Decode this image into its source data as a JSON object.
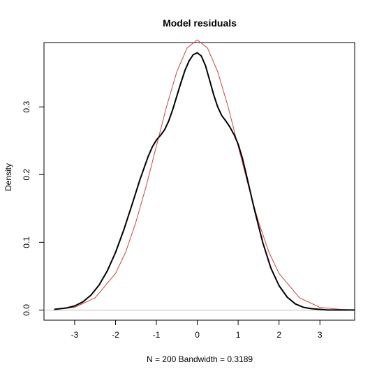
{
  "chart_data": {
    "type": "line",
    "title": "Model residuals",
    "xlabel": "N = 200   Bandwidth = 0.3189",
    "ylabel": "Density",
    "xlim": [
      -3.75,
      3.85
    ],
    "ylim": [
      -0.015,
      0.395
    ],
    "xticks": [
      -3,
      -2,
      -1,
      0,
      1,
      2,
      3
    ],
    "yticks": [
      0.0,
      0.1,
      0.2,
      0.3
    ],
    "ytick_labels": [
      "0.0",
      "0.1",
      "0.2",
      "0.3"
    ],
    "baseline": 0,
    "grid": false,
    "colors": {
      "kde": "#000000",
      "normal": "#cc4444",
      "baseline": "#bfbfbf",
      "axes": "#000000"
    },
    "series": [
      {
        "x": [
          -3.5,
          -3.2,
          -3.0,
          -2.8,
          -2.6,
          -2.4,
          -2.2,
          -2.0,
          -1.8,
          -1.6,
          -1.4,
          -1.2,
          -1.1,
          -1.0,
          -0.9,
          -0.8,
          -0.7,
          -0.6,
          -0.5,
          -0.4,
          -0.3,
          -0.2,
          -0.1,
          0.0,
          0.1,
          0.2,
          0.3,
          0.4,
          0.5,
          0.6,
          0.7,
          0.8,
          0.9,
          1.0,
          1.1,
          1.2,
          1.4,
          1.6,
          1.8,
          2.0,
          2.2,
          2.4,
          2.6,
          2.8,
          3.0,
          3.2,
          3.5,
          3.85
        ],
        "y": [
          0.001,
          0.003,
          0.006,
          0.012,
          0.022,
          0.037,
          0.058,
          0.085,
          0.118,
          0.155,
          0.193,
          0.227,
          0.241,
          0.251,
          0.258,
          0.266,
          0.279,
          0.296,
          0.316,
          0.336,
          0.354,
          0.368,
          0.377,
          0.38,
          0.375,
          0.361,
          0.34,
          0.318,
          0.3,
          0.287,
          0.279,
          0.27,
          0.259,
          0.245,
          0.225,
          0.2,
          0.148,
          0.1,
          0.062,
          0.036,
          0.019,
          0.009,
          0.004,
          0.002,
          0.001,
          0.0,
          0.0,
          0.0
        ]
      },
      {
        "x": [
          -3.5,
          -3.0,
          -2.5,
          -2.0,
          -1.75,
          -1.5,
          -1.25,
          -1.0,
          -0.75,
          -0.5,
          -0.25,
          0.0,
          0.25,
          0.5,
          0.75,
          1.0,
          1.25,
          1.5,
          1.75,
          2.0,
          2.5,
          3.0,
          3.5,
          3.85
        ],
        "y": [
          0.001,
          0.004,
          0.018,
          0.054,
          0.086,
          0.13,
          0.183,
          0.242,
          0.301,
          0.352,
          0.387,
          0.399,
          0.387,
          0.352,
          0.301,
          0.242,
          0.183,
          0.13,
          0.086,
          0.054,
          0.018,
          0.004,
          0.001,
          0.0
        ]
      }
    ]
  }
}
